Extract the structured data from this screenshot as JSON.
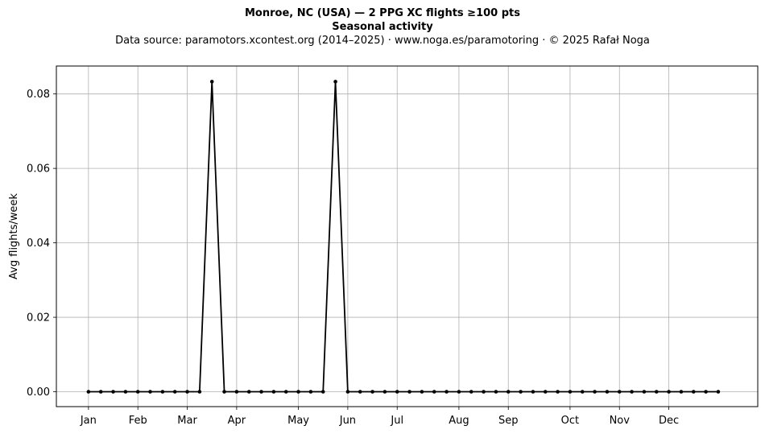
{
  "chart_data": {
    "type": "line",
    "title": "Monroe, NC (USA)  —  2 PPG XC flights ≥100 pts",
    "subtitle": "Seasonal activity",
    "source_note": "Data source: paramotors.xcontest.org (2014–2025)  ·  www.noga.es/paramotoring  ·  © 2025 Rafał Noga",
    "xlabel": "",
    "ylabel": "Avg flights/week",
    "ylim": [
      -0.004,
      0.0875
    ],
    "xlim": [
      -2.6,
      54.2
    ],
    "grid": true,
    "line_color": "#000000",
    "month_ticks": [
      {
        "label": "Jan",
        "week": 0
      },
      {
        "label": "Feb",
        "week": 4
      },
      {
        "label": "Mar",
        "week": 8
      },
      {
        "label": "Apr",
        "week": 12
      },
      {
        "label": "May",
        "week": 17
      },
      {
        "label": "Jun",
        "week": 21
      },
      {
        "label": "Jul",
        "week": 25
      },
      {
        "label": "Aug",
        "week": 30
      },
      {
        "label": "Sep",
        "week": 34
      },
      {
        "label": "Oct",
        "week": 39
      },
      {
        "label": "Nov",
        "week": 43
      },
      {
        "label": "Dec",
        "week": 47
      }
    ],
    "y_ticks": [
      {
        "label": "0.00",
        "value": 0.0
      },
      {
        "label": "0.02",
        "value": 0.02
      },
      {
        "label": "0.04",
        "value": 0.04
      },
      {
        "label": "0.06",
        "value": 0.06
      },
      {
        "label": "0.08",
        "value": 0.08
      }
    ],
    "x": [
      0,
      1,
      2,
      3,
      4,
      5,
      6,
      7,
      8,
      9,
      10,
      11,
      12,
      13,
      14,
      15,
      16,
      17,
      18,
      19,
      20,
      21,
      22,
      23,
      24,
      25,
      26,
      27,
      28,
      29,
      30,
      31,
      32,
      33,
      34,
      35,
      36,
      37,
      38,
      39,
      40,
      41,
      42,
      43,
      44,
      45,
      46,
      47,
      48,
      49,
      50,
      51
    ],
    "values": [
      0,
      0,
      0,
      0,
      0,
      0,
      0,
      0,
      0,
      0,
      0.0833,
      0,
      0,
      0,
      0,
      0,
      0,
      0,
      0,
      0,
      0.0833,
      0,
      0,
      0,
      0,
      0,
      0,
      0,
      0,
      0,
      0,
      0,
      0,
      0,
      0,
      0,
      0,
      0,
      0,
      0,
      0,
      0,
      0,
      0,
      0,
      0,
      0,
      0,
      0,
      0,
      0,
      0
    ]
  }
}
